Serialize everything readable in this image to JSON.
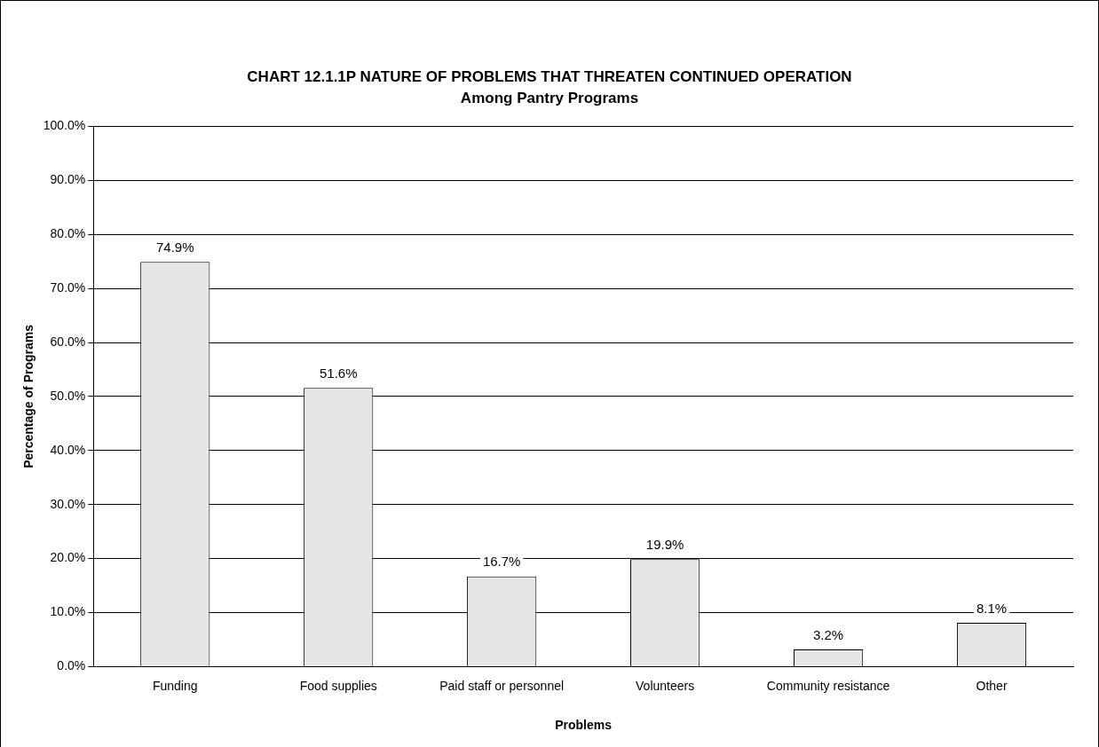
{
  "chart_data": {
    "type": "bar",
    "title": "CHART 12.1.1P   NATURE OF PROBLEMS THAT THREATEN CONTINUED OPERATION",
    "subtitle": "Among Pantry Programs",
    "xlabel": "Problems",
    "ylabel": "Percentage of Programs",
    "categories": [
      "Funding",
      "Food supplies",
      "Paid staff or personnel",
      "Volunteers",
      "Community resistance",
      "Other"
    ],
    "values": [
      74.9,
      51.6,
      16.7,
      19.9,
      3.2,
      8.1
    ],
    "value_labels": [
      "74.9%",
      "51.6%",
      "16.7%",
      "19.9%",
      "3.2%",
      "8.1%"
    ],
    "color": "#e6e6e6",
    "ylim": [
      0,
      100
    ],
    "yticks": [
      {
        "value": 0,
        "label": "0.0%"
      },
      {
        "value": 10,
        "label": "10.0%"
      },
      {
        "value": 20,
        "label": "20.0%"
      },
      {
        "value": 30,
        "label": "30.0%"
      },
      {
        "value": 40,
        "label": "40.0%"
      },
      {
        "value": 50,
        "label": "50.0%"
      },
      {
        "value": 60,
        "label": "60.0%"
      },
      {
        "value": 70,
        "label": "70.0%"
      },
      {
        "value": 80,
        "label": "80.0%"
      },
      {
        "value": 90,
        "label": "90.0%"
      },
      {
        "value": 100,
        "label": "100.0%"
      }
    ],
    "grid": "y",
    "legend": false
  }
}
